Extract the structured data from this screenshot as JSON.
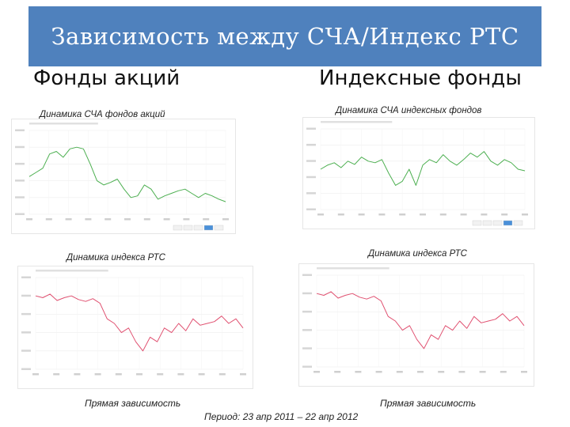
{
  "slide": {
    "title": "Зависимость между СЧА/Индекс РТС",
    "left_column_heading": "Фонды акций",
    "right_column_heading": "Индексные фонды",
    "caption_nav_equity": "Динамика СЧА  фондов акций",
    "caption_nav_index": "Динамика СЧА индексных фондов",
    "caption_rts_left": "Динамика индекса РТС",
    "caption_rts_right": "Динамика индекса РТС",
    "conclusion_left": "Прямая зависимость",
    "conclusion_right": "Прямая зависимость",
    "period": "Период: 23 апр 2011 – 22 апр 2012"
  },
  "colors": {
    "title_bar": "#4f81bd",
    "nav_line": "#4caf50",
    "rts_line": "#e05070"
  },
  "chart_data": [
    {
      "type": "line",
      "title": "Динамика СЧА  фондов акций",
      "series": [
        {
          "values": [
            0.45,
            0.5,
            0.55,
            0.72,
            0.75,
            0.68,
            0.78,
            0.8,
            0.78,
            0.6,
            0.4,
            0.35,
            0.38,
            0.42,
            0.3,
            0.2,
            0.22,
            0.35,
            0.3,
            0.18,
            0.22,
            0.25,
            0.28,
            0.3,
            0.25,
            0.2,
            0.25,
            0.22,
            0.18,
            0.15
          ]
        }
      ],
      "grid": true
    },
    {
      "type": "line",
      "title": "Динамика СЧА индексных фондов",
      "series": [
        {
          "values": [
            0.5,
            0.55,
            0.58,
            0.52,
            0.6,
            0.56,
            0.65,
            0.6,
            0.58,
            0.62,
            0.45,
            0.3,
            0.35,
            0.5,
            0.3,
            0.55,
            0.62,
            0.58,
            0.68,
            0.6,
            0.55,
            0.62,
            0.7,
            0.65,
            0.72,
            0.6,
            0.55,
            0.62,
            0.58,
            0.5,
            0.48
          ]
        }
      ],
      "grid": true
    },
    {
      "type": "line",
      "title": "Динамика индекса РТС",
      "series": [
        {
          "values": [
            0.8,
            0.78,
            0.82,
            0.75,
            0.78,
            0.8,
            0.76,
            0.74,
            0.77,
            0.72,
            0.55,
            0.5,
            0.4,
            0.45,
            0.3,
            0.2,
            0.35,
            0.3,
            0.45,
            0.4,
            0.5,
            0.42,
            0.55,
            0.48,
            0.5,
            0.52,
            0.58,
            0.5,
            0.55,
            0.45
          ]
        }
      ],
      "grid": true
    },
    {
      "type": "line",
      "title": "Динамика индекса РТС",
      "series": [
        {
          "values": [
            0.8,
            0.78,
            0.82,
            0.75,
            0.78,
            0.8,
            0.76,
            0.74,
            0.77,
            0.72,
            0.55,
            0.5,
            0.4,
            0.45,
            0.3,
            0.2,
            0.35,
            0.3,
            0.45,
            0.4,
            0.5,
            0.42,
            0.55,
            0.48,
            0.5,
            0.52,
            0.58,
            0.5,
            0.55,
            0.45
          ]
        }
      ],
      "grid": true
    }
  ]
}
